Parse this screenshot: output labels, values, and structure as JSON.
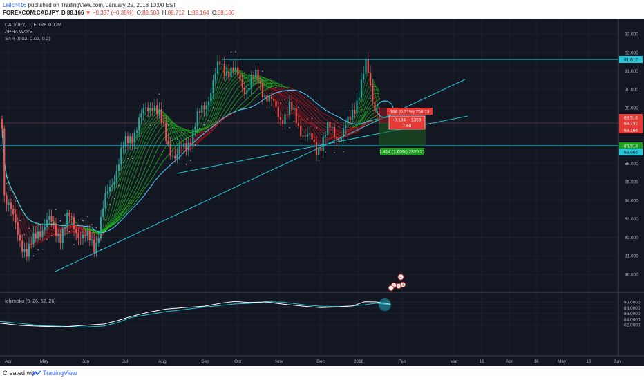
{
  "header": {
    "author": "Leilch416",
    "published_text": "published on TradingView.com, January 25, 2018 13:00 EST",
    "symbol": "FOREXCOM:CADJPY, D",
    "last": "88.166",
    "change": "▼ −0.337 (−0.38%)",
    "open_label": "O:",
    "open": "88.503",
    "high_label": "H:",
    "high": "88.712",
    "low_label": "L:",
    "low": "88.164",
    "close_label": "C:",
    "close": "88.166"
  },
  "legend": {
    "symbol": "CAD/JPY, D, FOREXCOM",
    "indicator1": "APHA WAVE",
    "indicator2": "SAR (0.02, 0.02, 0.2)",
    "oscillator": "Ichimoku (9, 26, 52, 26)"
  },
  "price_axis": [
    "93.000",
    "92.000",
    "91.000",
    "90.000",
    "89.000",
    "88.000",
    "87.000",
    "86.000",
    "85.000",
    "84.000",
    "83.000",
    "82.000",
    "81.000",
    "80.000"
  ],
  "osc_axis": [
    "90.0000",
    "88.0000",
    "86.0000",
    "84.0000",
    "82.0000"
  ],
  "time_axis": [
    "Apr",
    "May",
    "Jun",
    "Jul",
    "Aug",
    "Sep",
    "Oct",
    "Nov",
    "Dec",
    "2018",
    "Feb",
    "Mar",
    "16",
    "Apr",
    "16",
    "May",
    "16",
    "Jun"
  ],
  "price_tags": [
    {
      "label": "91.612",
      "bg": "#26c6da",
      "fg": "#0d0d0d"
    },
    {
      "label": "88.516",
      "bg": "#e53935",
      "fg": "#ffffff"
    },
    {
      "label": "88.332",
      "bg": "#e53935",
      "fg": "#ffffff"
    },
    {
      "label": "88.166",
      "bg": "#e53935",
      "fg": "#ffffff"
    },
    {
      "label": "86.918",
      "bg": "#1b9e1b",
      "fg": "#ffffff"
    },
    {
      "label": "86.905",
      "bg": "#26c6da",
      "fg": "#0d0d0d"
    }
  ],
  "annotations": {
    "stop_box": "188 (0.21%) 750.13",
    "ratio_line1": "-0.184 -- 1358",
    "ratio_line2": "7.68",
    "target_box": "1.414 (1.60%) 2920.21",
    "badge_e": "E",
    "badge_1": "1",
    "badge_2": "2",
    "badge_3": "3"
  },
  "colors": {
    "background": "#131722",
    "up_candle": "#26a69a",
    "down_candle": "#ef5350",
    "trendline": "#26c6da",
    "ribbon_green": "#1eb21e",
    "ribbon_red": "#b3141c",
    "osc_line_white": "#ffffff",
    "osc_line_cyan": "#26c6da"
  },
  "footer": {
    "created_with": "Created with",
    "brand": "TradingView"
  }
}
